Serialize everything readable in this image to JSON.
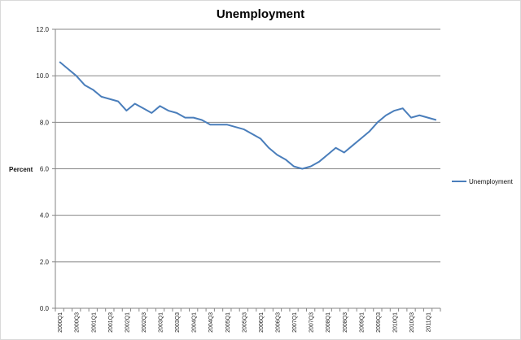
{
  "chart_data": {
    "type": "line",
    "title": "Unemployment",
    "xlabel": "",
    "ylabel": "Percent",
    "ylim": [
      0,
      12
    ],
    "yticks": [
      "0.0",
      "2.0",
      "4.0",
      "6.0",
      "8.0",
      "10.0",
      "12.0"
    ],
    "grid": true,
    "legend": "right",
    "categories": [
      "2000Q1",
      "2000Q3",
      "2001Q1",
      "2001Q3",
      "2002Q1",
      "2002Q3",
      "2003Q1",
      "2003Q3",
      "2004Q1",
      "2004Q3",
      "2005Q1",
      "2005Q3",
      "2006Q1",
      "2006Q3",
      "2007Q1",
      "2007Q3",
      "2008Q1",
      "2008Q3",
      "2009Q1",
      "2009Q3",
      "2010Q1",
      "2010Q3",
      "2011Q1"
    ],
    "series": [
      {
        "name": "Unemployment",
        "color": "#4a7ebb",
        "x": [
          "2000Q1",
          "2000Q2",
          "2000Q3",
          "2000Q4",
          "2001Q1",
          "2001Q2",
          "2001Q3",
          "2001Q4",
          "2002Q1",
          "2002Q2",
          "2002Q3",
          "2002Q4",
          "2003Q1",
          "2003Q2",
          "2003Q3",
          "2003Q4",
          "2004Q1",
          "2004Q2",
          "2004Q3",
          "2004Q4",
          "2005Q1",
          "2005Q2",
          "2005Q3",
          "2005Q4",
          "2006Q1",
          "2006Q2",
          "2006Q3",
          "2006Q4",
          "2007Q1",
          "2007Q2",
          "2007Q3",
          "2007Q4",
          "2008Q1",
          "2008Q2",
          "2008Q3",
          "2008Q4",
          "2009Q1",
          "2009Q2",
          "2009Q3",
          "2009Q4",
          "2010Q1",
          "2010Q2",
          "2010Q3",
          "2010Q4",
          "2011Q1",
          "2011Q2"
        ],
        "values": [
          10.6,
          10.3,
          10.0,
          9.6,
          9.4,
          9.1,
          9.0,
          8.9,
          8.5,
          8.8,
          8.6,
          8.4,
          8.7,
          8.5,
          8.4,
          8.2,
          8.2,
          8.1,
          7.9,
          7.9,
          7.9,
          7.8,
          7.7,
          7.5,
          7.3,
          6.9,
          6.6,
          6.4,
          6.1,
          6.0,
          6.1,
          6.3,
          6.6,
          6.9,
          6.7,
          7.0,
          7.3,
          7.6,
          8.0,
          8.3,
          8.5,
          8.6,
          8.2,
          8.3,
          8.2,
          8.1
        ]
      }
    ]
  }
}
